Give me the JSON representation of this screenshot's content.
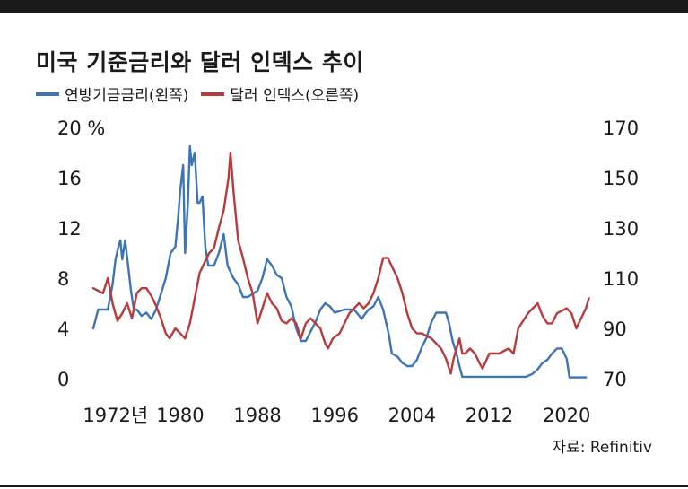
{
  "title": "미국 기준금리와 달러 인덱스 추이",
  "source": "자료: Refinitiv",
  "colors": {
    "fed": "#3d74b6",
    "dxy": "#b83a3d"
  },
  "chart_data": {
    "type": "line",
    "title": "미국 기준금리와 달러 인덱스 추이",
    "x_ticks": [
      1972,
      1980,
      1988,
      1996,
      2004,
      2012,
      2020
    ],
    "x_tick_labels": [
      "1972년",
      "1980",
      "1988",
      "1996",
      "2004",
      "2012",
      "2020"
    ],
    "xlim": [
      1971,
      2023
    ],
    "left_axis": {
      "ticks": [
        0,
        4,
        8,
        12,
        16,
        20
      ],
      "tick_labels": [
        "0",
        "4",
        "8",
        "12",
        "16",
        "20 %"
      ],
      "ylim": [
        0,
        20
      ]
    },
    "right_axis": {
      "ticks": [
        70,
        90,
        110,
        130,
        150,
        170
      ],
      "tick_labels": [
        "70",
        "90",
        "110",
        "130",
        "150",
        "170"
      ],
      "ylim": [
        70,
        170
      ]
    },
    "legend": "top-left",
    "series": [
      {
        "name": "연방기금금리(왼쪽)",
        "axis": "left",
        "color": "#3d74b6",
        "x": [
          1971.0,
          1971.5,
          1972.0,
          1972.5,
          1973.0,
          1973.3,
          1973.6,
          1973.8,
          1974.0,
          1974.3,
          1974.6,
          1974.9,
          1975.2,
          1975.5,
          1976.0,
          1976.5,
          1977.0,
          1977.5,
          1978.0,
          1978.5,
          1979.0,
          1979.5,
          1979.8,
          1980.0,
          1980.3,
          1980.5,
          1980.8,
          1981.0,
          1981.2,
          1981.5,
          1981.8,
          1982.0,
          1982.3,
          1982.6,
          1982.9,
          1983.5,
          1984.0,
          1984.5,
          1984.9,
          1985.5,
          1986.0,
          1986.5,
          1987.0,
          1987.5,
          1988.0,
          1988.5,
          1989.0,
          1989.5,
          1990.0,
          1990.5,
          1991.0,
          1991.5,
          1992.0,
          1992.5,
          1993.0,
          1994.0,
          1994.5,
          1995.0,
          1995.5,
          1996.0,
          1997.0,
          1998.0,
          1998.8,
          1999.0,
          1999.5,
          2000.0,
          2000.5,
          2001.0,
          2001.3,
          2001.6,
          2001.9,
          2002.5,
          2003.0,
          2003.5,
          2004.0,
          2004.5,
          2005.0,
          2005.5,
          2006.0,
          2006.5,
          2007.0,
          2007.5,
          2007.8,
          2008.2,
          2008.6,
          2008.9,
          2009.2,
          2012.0,
          2015.8,
          2016.5,
          2017.0,
          2017.5,
          2018.0,
          2018.5,
          2019.0,
          2019.5,
          2020.0,
          2020.3,
          2021.0,
          2022.0
        ],
        "y": [
          4.0,
          5.5,
          5.5,
          5.5,
          7.5,
          9.5,
          10.5,
          11.0,
          9.5,
          11.0,
          9.0,
          7.0,
          5.5,
          5.5,
          5.0,
          5.25,
          4.75,
          5.5,
          6.75,
          8.0,
          10.0,
          10.5,
          13.0,
          15.0,
          17.0,
          10.0,
          14.0,
          18.5,
          17.0,
          18.0,
          14.0,
          14.0,
          14.5,
          10.5,
          9.0,
          9.0,
          10.0,
          11.5,
          9.0,
          8.0,
          7.5,
          6.5,
          6.5,
          6.75,
          7.0,
          8.0,
          9.5,
          9.0,
          8.25,
          8.0,
          6.5,
          5.75,
          4.0,
          3.0,
          3.0,
          4.5,
          5.5,
          6.0,
          5.75,
          5.25,
          5.5,
          5.5,
          4.75,
          5.0,
          5.5,
          5.75,
          6.5,
          5.5,
          4.5,
          3.5,
          2.0,
          1.75,
          1.25,
          1.0,
          1.0,
          1.5,
          2.5,
          3.25,
          4.5,
          5.25,
          5.25,
          5.25,
          4.5,
          3.0,
          2.0,
          1.0,
          0.15,
          0.15,
          0.15,
          0.4,
          0.75,
          1.25,
          1.5,
          2.0,
          2.4,
          2.4,
          1.6,
          0.1,
          0.1,
          0.1
        ]
      },
      {
        "name": "달러 인덱스(오른쪽)",
        "axis": "right",
        "color": "#b83a3d",
        "x": [
          1971.0,
          1971.5,
          1972.0,
          1972.5,
          1973.0,
          1973.5,
          1974.0,
          1974.5,
          1975.0,
          1975.5,
          1976.0,
          1976.5,
          1977.0,
          1977.5,
          1978.0,
          1978.5,
          1978.9,
          1979.5,
          1980.0,
          1980.5,
          1981.0,
          1981.5,
          1982.0,
          1982.5,
          1983.0,
          1983.5,
          1984.0,
          1984.5,
          1985.0,
          1985.2,
          1985.5,
          1986.0,
          1986.5,
          1987.0,
          1987.5,
          1988.0,
          1988.5,
          1989.0,
          1989.5,
          1990.0,
          1990.5,
          1991.0,
          1991.5,
          1992.0,
          1992.5,
          1993.0,
          1993.5,
          1994.0,
          1994.5,
          1995.0,
          1995.3,
          1995.8,
          1996.5,
          1997.0,
          1997.5,
          1998.0,
          1998.5,
          1999.0,
          1999.5,
          2000.0,
          2000.5,
          2001.0,
          2001.5,
          2002.0,
          2002.5,
          2003.0,
          2003.5,
          2004.0,
          2004.5,
          2005.0,
          2006.0,
          2007.0,
          2007.5,
          2008.0,
          2008.3,
          2008.9,
          2009.2,
          2009.5,
          2010.0,
          2010.5,
          2011.0,
          2011.3,
          2012.0,
          2013.0,
          2014.0,
          2014.5,
          2015.0,
          2016.0,
          2017.0,
          2017.5,
          2018.0,
          2018.5,
          2019.0,
          2020.0,
          2020.5,
          2021.0,
          2021.5,
          2022.0,
          2022.3
        ],
        "y": [
          106,
          105,
          104,
          110,
          100,
          93,
          96,
          100,
          94,
          104,
          106,
          106,
          103,
          99,
          94,
          88,
          86,
          90,
          88,
          86,
          92,
          102,
          112,
          116,
          120,
          122,
          130,
          137,
          150,
          160,
          145,
          125,
          118,
          110,
          104,
          92,
          98,
          104,
          100,
          98,
          93,
          92,
          94,
          92,
          86,
          92,
          94,
          92,
          90,
          84,
          82,
          86,
          88,
          92,
          96,
          98,
          100,
          98,
          100,
          104,
          110,
          118,
          118,
          114,
          110,
          104,
          96,
          90,
          88,
          88,
          86,
          82,
          78,
          72,
          78,
          86,
          80,
          80,
          82,
          80,
          76,
          74,
          80,
          80,
          82,
          80,
          90,
          96,
          100,
          95,
          92,
          92,
          96,
          98,
          96,
          90,
          94,
          98,
          102
        ]
      }
    ]
  }
}
